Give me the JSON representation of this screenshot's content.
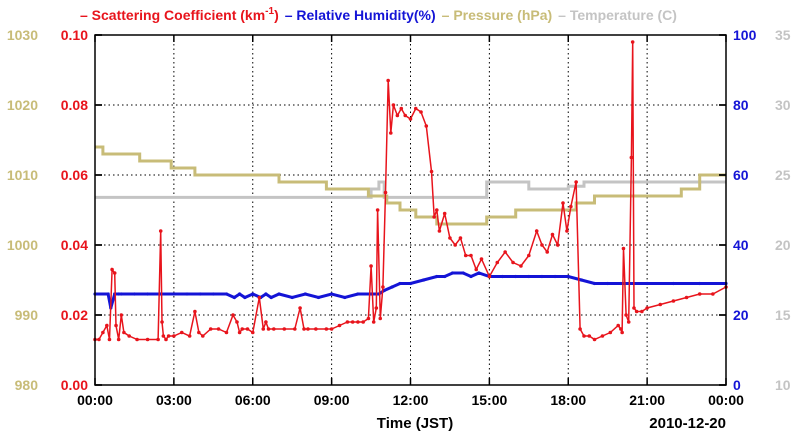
{
  "chart_data": {
    "type": "line",
    "title": "",
    "xlabel": "Time (JST)",
    "date_label": "2010-12-20",
    "x_ticks": [
      "00:00",
      "03:00",
      "06:00",
      "09:00",
      "12:00",
      "15:00",
      "18:00",
      "21:00",
      "00:00"
    ],
    "x_range_hours": [
      0,
      24
    ],
    "legend": [
      {
        "key": "scat",
        "prefix": "– ",
        "name": "Scattering Coefficient (km",
        "sup": "-1",
        "suffix": ")",
        "color": "#e8141c"
      },
      {
        "key": "rh",
        "prefix": "– ",
        "name": "Relative Humidity(%)",
        "sup": "",
        "suffix": "",
        "color": "#1414d6"
      },
      {
        "key": "pres",
        "prefix": "– ",
        "name": "Pressure (hPa)",
        "sup": "",
        "suffix": "",
        "color": "#c8bc78"
      },
      {
        "key": "temp",
        "prefix": "– ",
        "name": "Temperature (",
        "sup": "",
        "suffix": "C)",
        "color": "#c4c4c4"
      }
    ],
    "axes": {
      "scat": {
        "ylim": [
          0,
          0.1
        ],
        "ticks": [
          "0.00",
          "0.02",
          "0.04",
          "0.06",
          "0.08",
          "0.10"
        ],
        "color": "#e8141c"
      },
      "pres": {
        "ylim": [
          980,
          1030
        ],
        "ticks": [
          "980",
          "990",
          "1000",
          "1010",
          "1020",
          "1030"
        ],
        "color": "#c8bc78"
      },
      "rh": {
        "ylim": [
          0,
          100
        ],
        "ticks": [
          "0",
          "20",
          "40",
          "60",
          "80",
          "100"
        ],
        "color": "#1414d6"
      },
      "temp": {
        "ylim": [
          10,
          35
        ],
        "ticks": [
          "10",
          "15",
          "20",
          "25",
          "30",
          "35"
        ],
        "color": "#c4c4c4"
      }
    },
    "grid": true,
    "series": [
      {
        "name": "Scattering Coefficient",
        "axis": "scat",
        "color": "#e8141c",
        "markers": true,
        "x": [
          0,
          0.15,
          0.3,
          0.45,
          0.55,
          0.65,
          0.75,
          0.8,
          0.9,
          1.0,
          1.1,
          1.3,
          1.6,
          2.0,
          2.4,
          2.5,
          2.55,
          2.6,
          2.7,
          2.8,
          3.0,
          3.3,
          3.6,
          3.8,
          3.95,
          4.1,
          4.4,
          4.7,
          5.0,
          5.25,
          5.4,
          5.5,
          5.6,
          5.8,
          6.0,
          6.25,
          6.4,
          6.5,
          6.6,
          6.8,
          7.2,
          7.6,
          7.8,
          7.95,
          8.1,
          8.4,
          8.8,
          9.0,
          9.3,
          9.6,
          9.8,
          10.0,
          10.2,
          10.4,
          10.5,
          10.6,
          10.7,
          10.75,
          10.85,
          10.95,
          11.05,
          11.15,
          11.25,
          11.35,
          11.5,
          11.65,
          11.8,
          12.0,
          12.2,
          12.4,
          12.6,
          12.8,
          12.9,
          13.0,
          13.1,
          13.3,
          13.5,
          13.7,
          13.9,
          14.1,
          14.3,
          14.5,
          14.7,
          15.0,
          15.3,
          15.6,
          15.9,
          16.2,
          16.5,
          16.8,
          17.0,
          17.2,
          17.4,
          17.6,
          17.8,
          17.95,
          18.1,
          18.3,
          18.45,
          18.6,
          18.8,
          19.0,
          19.3,
          19.6,
          19.9,
          20.0,
          20.05,
          20.1,
          20.2,
          20.3,
          20.4,
          20.45,
          20.5,
          20.6,
          20.8,
          21.0,
          21.5,
          22.0,
          22.5,
          23.0,
          23.5,
          24.0
        ],
        "values": [
          0.013,
          0.013,
          0.015,
          0.017,
          0.013,
          0.033,
          0.032,
          0.017,
          0.013,
          0.02,
          0.015,
          0.014,
          0.013,
          0.013,
          0.013,
          0.044,
          0.018,
          0.014,
          0.013,
          0.014,
          0.014,
          0.015,
          0.014,
          0.021,
          0.015,
          0.014,
          0.016,
          0.016,
          0.015,
          0.02,
          0.018,
          0.015,
          0.016,
          0.016,
          0.015,
          0.025,
          0.016,
          0.018,
          0.016,
          0.016,
          0.016,
          0.016,
          0.022,
          0.016,
          0.016,
          0.016,
          0.016,
          0.016,
          0.017,
          0.018,
          0.018,
          0.018,
          0.018,
          0.019,
          0.034,
          0.018,
          0.022,
          0.05,
          0.019,
          0.028,
          0.055,
          0.087,
          0.072,
          0.08,
          0.077,
          0.079,
          0.077,
          0.076,
          0.079,
          0.078,
          0.074,
          0.061,
          0.048,
          0.05,
          0.044,
          0.049,
          0.042,
          0.04,
          0.042,
          0.037,
          0.037,
          0.033,
          0.036,
          0.031,
          0.035,
          0.038,
          0.035,
          0.034,
          0.037,
          0.044,
          0.04,
          0.038,
          0.043,
          0.04,
          0.052,
          0.044,
          0.051,
          0.058,
          0.016,
          0.014,
          0.014,
          0.013,
          0.014,
          0.015,
          0.017,
          0.016,
          0.015,
          0.039,
          0.02,
          0.018,
          0.065,
          0.098,
          0.022,
          0.021,
          0.021,
          0.022,
          0.023,
          0.024,
          0.025,
          0.026,
          0.026,
          0.028
        ]
      },
      {
        "name": "Relative Humidity(%)",
        "axis": "rh",
        "color": "#1414d6",
        "markers": true,
        "x": [
          0,
          0.5,
          0.6,
          0.75,
          0.9,
          1.0,
          1.5,
          2.0,
          2.5,
          3.0,
          3.5,
          4.0,
          4.5,
          5.0,
          5.3,
          5.5,
          5.7,
          6.0,
          6.3,
          6.5,
          6.7,
          7.0,
          7.5,
          8.0,
          8.5,
          9.0,
          9.5,
          10.0,
          10.5,
          10.8,
          11.0,
          11.3,
          11.6,
          12.0,
          12.5,
          13.0,
          13.3,
          13.6,
          14.0,
          14.3,
          14.6,
          15.0,
          15.5,
          16.0,
          16.5,
          17.0,
          17.5,
          18.0,
          18.5,
          19.0,
          19.5,
          20.0,
          21.0,
          22.0,
          23.0,
          24.0
        ],
        "values": [
          26,
          26,
          22,
          26,
          26,
          26,
          26,
          26,
          26,
          26,
          26,
          26,
          26,
          26,
          25,
          26,
          25,
          26,
          25,
          26,
          25,
          26,
          25,
          26,
          25,
          26,
          25,
          26,
          26,
          26,
          27,
          28,
          29,
          29,
          30,
          31,
          31,
          32,
          32,
          31,
          32,
          31,
          31,
          31,
          31,
          31,
          31,
          31,
          30,
          29,
          29,
          29,
          29,
          29,
          29,
          29
        ]
      },
      {
        "name": "Pressure (hPa)",
        "axis": "pres",
        "color": "#c8bc78",
        "step": true,
        "x": [
          0,
          0.3,
          1.7,
          2.9,
          3.8,
          4.8,
          6.3,
          7.0,
          8.8,
          10.4,
          11.1,
          11.6,
          12.2,
          13.0,
          14.3,
          14.9,
          16.0,
          18.3,
          19.0,
          21.0,
          22.3,
          23.0,
          24.0
        ],
        "values": [
          1014,
          1013,
          1012,
          1011,
          1010,
          1010,
          1010,
          1009,
          1008,
          1007,
          1006,
          1005,
          1004,
          1003,
          1003,
          1004,
          1005,
          1006,
          1007,
          1007,
          1008,
          1010,
          1010
        ]
      },
      {
        "name": "Temperature (C)",
        "axis": "temp",
        "color": "#c4c4c4",
        "step": true,
        "x": [
          0,
          10.4,
          10.5,
          10.8,
          11.0,
          12.2,
          13.0,
          14.6,
          14.9,
          16.5,
          18.0,
          18.6,
          19.5,
          24.0
        ],
        "values": [
          23.4,
          23.4,
          24.0,
          24.5,
          23.4,
          23.4,
          23.4,
          23.4,
          24.5,
          24.0,
          24.2,
          24.5,
          24.5,
          24.5
        ]
      }
    ]
  }
}
